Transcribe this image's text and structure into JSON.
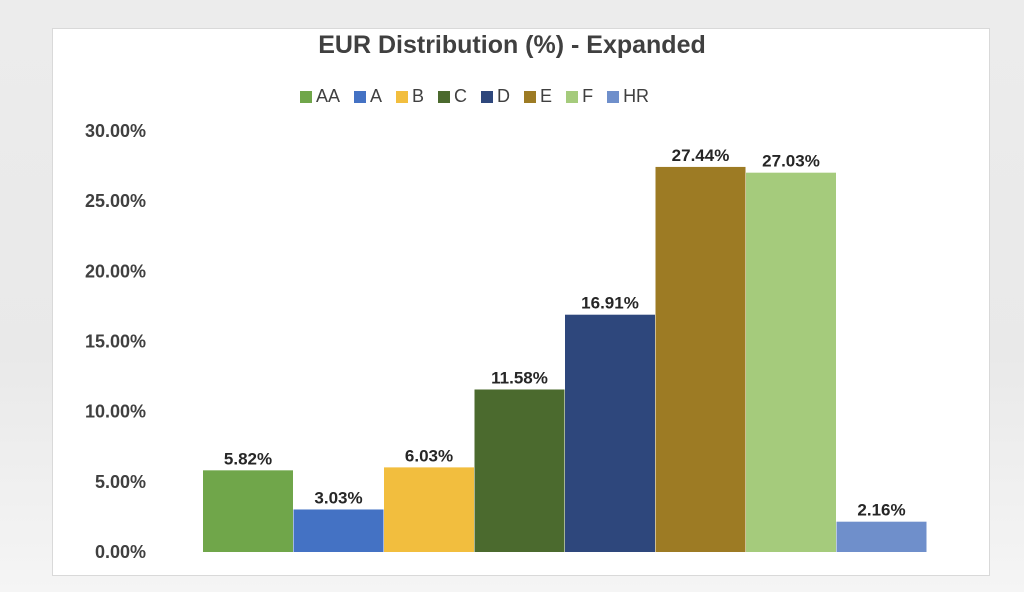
{
  "chart_data": {
    "type": "bar",
    "title": "EUR Distribution (%) - Expanded",
    "categories": [
      "AA",
      "A",
      "B",
      "C",
      "D",
      "E",
      "F",
      "HR"
    ],
    "values": [
      5.82,
      3.03,
      6.03,
      11.58,
      16.91,
      27.44,
      27.03,
      2.16
    ],
    "data_labels": [
      "5.82%",
      "3.03%",
      "6.03%",
      "11.58%",
      "16.91%",
      "27.44%",
      "27.03%",
      "2.16%"
    ],
    "colors": [
      "#70a64a",
      "#4472c4",
      "#f2be3e",
      "#4b6a2e",
      "#2e477c",
      "#9d7b24",
      "#a5cb7c",
      "#6f8fcb"
    ],
    "y_ticks": [
      "0.00%",
      "5.00%",
      "10.00%",
      "15.00%",
      "20.00%",
      "25.00%",
      "30.00%"
    ],
    "ylim": [
      0,
      30
    ],
    "xlabel": "",
    "ylabel": "",
    "legend_position": "top",
    "grid": false
  }
}
